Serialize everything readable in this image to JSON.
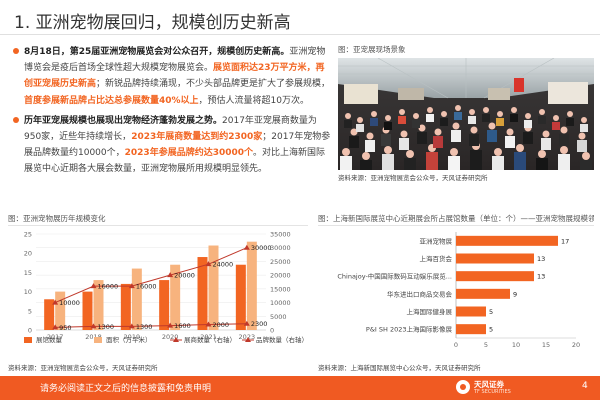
{
  "header": {
    "title": "1. 亚洲宠物展回归，规模创历史新高"
  },
  "bullets": [
    {
      "lead": "8月18日，第25届亚洲宠物展览会对公众召开，规模创历史新高。",
      "p1": "亚洲宠物博览会是疫后首场全球性超大规模宠物展览会。",
      "hl1": "展览面积达23万平方米，再创亚宠展历史新高",
      "p2": "；新锐品牌持续涌现，不少头部品牌更是扩大了参展规模，",
      "hl2": "首度参展新品牌占比达总参展数量40%以上",
      "p3": "，预估人流量将超10万次。"
    },
    {
      "lead": "历年亚宠展规模也展现出宠物经济蓬勃发展之势。",
      "p1": "2017年亚宠展商数量为950家，近些年持续增长，",
      "hl1": "2023年展商数量达到约2300家",
      "p2": "；2017年宠物参展品牌数量约10000个，",
      "hl2": "2023年参展品牌约达30000个",
      "p3": "。对比上海新国际展览中心近期各大展会数量，亚洲宠物展所用规模明显领先。"
    }
  ],
  "photo_panel": {
    "label": "图：亚宠展现场景象",
    "source": "资料来源：亚洲宠物展览会公众号，天风证券研究所"
  },
  "chart_left": {
    "label": "图：亚洲宠物展历年规模变化",
    "source": "资料来源：亚洲宠物展览会公众号，天风证券研究所"
  },
  "chart_right": {
    "label": "图：上海新国际展览中心近期展会所占展馆数量（单位：个）——亚洲宠物展规模领先",
    "source": "资料来源：上海新国际展览中心公众号，天风证券研究所"
  },
  "chart_data": [
    {
      "type": "bar",
      "categories": [
        "2017",
        "2018",
        "2019",
        "2020",
        "2021",
        "2023"
      ],
      "y_left_ticks": [
        "0",
        "5",
        "10",
        "15",
        "20",
        "25"
      ],
      "y_right_ticks": [
        "0",
        "5000",
        "10000",
        "15000",
        "20000",
        "25000",
        "30000",
        "35000"
      ],
      "ylim_left": [
        0,
        25
      ],
      "ylim_right": [
        0,
        35000
      ],
      "legend_position": "bottom",
      "series": [
        {
          "name": "展馆数量",
          "kind": "bar",
          "axis": "left",
          "color": "#f26522",
          "values": [
            8,
            10,
            12,
            13,
            19,
            17
          ]
        },
        {
          "name": "面积（万平米）",
          "kind": "bar",
          "axis": "left",
          "color": "#f7b37e",
          "values": [
            10,
            13,
            16,
            17,
            22,
            23
          ]
        },
        {
          "name": "展商数量（右轴）",
          "kind": "line",
          "axis": "right",
          "color": "#c0392b",
          "values": [
            950,
            1300,
            1300,
            1600,
            2000,
            2300
          ],
          "labels": [
            "950",
            "1300",
            "1300",
            "1600",
            "2000",
            "2300"
          ]
        },
        {
          "name": "品牌数量（右轴）",
          "kind": "line",
          "axis": "right",
          "color": "#c0392b",
          "values": [
            10000,
            16000,
            16000,
            20000,
            24000,
            30000
          ],
          "labels": [
            "10000",
            "16000",
            "16000",
            "20000",
            "24000",
            "30000"
          ]
        }
      ]
    },
    {
      "type": "bar",
      "orientation": "horizontal",
      "categories": [
        "亚洲宠物展",
        "上海百货会",
        "Chinajoy-中国国际数码互动娱乐展览...",
        "华东进出口商品交易会",
        "上海国际健身展",
        "P&I SH 2023上海国际影像展"
      ],
      "values": [
        17,
        13,
        13,
        9,
        5,
        5
      ],
      "x_ticks": [
        "0",
        "5",
        "10",
        "15",
        "20"
      ],
      "xlim": [
        0,
        20
      ],
      "color": "#f26522"
    }
  ],
  "footer": {
    "disclaimer": "请务必阅读正文之后的信息披露和免责申明",
    "logo_cn": "天风证券",
    "logo_en": "TF SECURITIES",
    "page_number": "4"
  }
}
